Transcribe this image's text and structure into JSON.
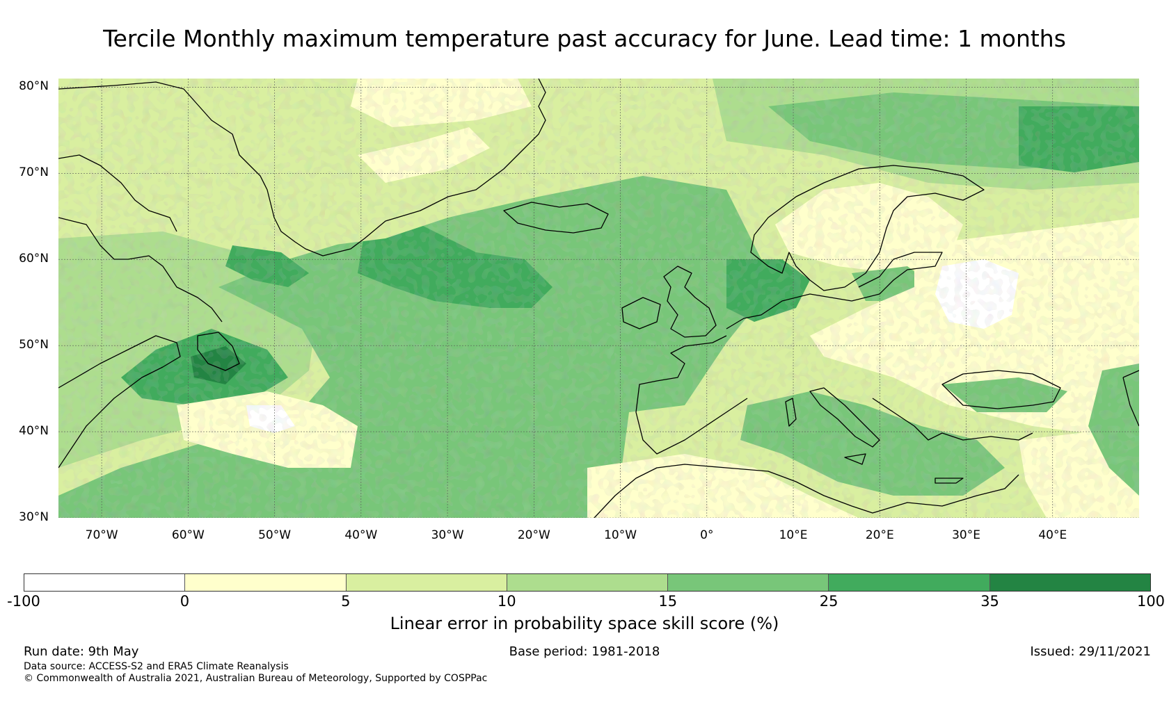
{
  "title": "Tercile Monthly maximum temperature past accuracy for June. Lead time: 1 months",
  "map": {
    "lon_range": [
      -75,
      50
    ],
    "lat_range": [
      30,
      81
    ],
    "lat_ticks": [
      "80°N",
      "70°N",
      "60°N",
      "50°N",
      "40°N",
      "30°N"
    ],
    "lat_values": [
      80,
      70,
      60,
      50,
      40,
      30
    ],
    "lon_ticks": [
      "70°W",
      "60°W",
      "50°W",
      "40°W",
      "30°W",
      "20°W",
      "10°W",
      "0°",
      "10°E",
      "20°E",
      "30°E",
      "40°E"
    ],
    "lon_values": [
      -70,
      -60,
      -50,
      -40,
      -30,
      -20,
      -10,
      0,
      10,
      20,
      30,
      40
    ]
  },
  "colorbar": {
    "colors": [
      "#ffffff",
      "#ffffcc",
      "#d9efa0",
      "#addd8e",
      "#78c679",
      "#41ab5d",
      "#238443"
    ],
    "tick_labels": [
      "-100",
      "0",
      "5",
      "10",
      "15",
      "25",
      "35",
      "100"
    ],
    "label": "Linear error in probability space skill score (%)"
  },
  "footer": {
    "run_date": "Run date: 9th May",
    "base_period": "Base period: 1981-2018",
    "issued": "Issued: 29/11/2021",
    "data_source": "Data source: ACCESS-S2 and ERA5 Climate Reanalysis",
    "copyright": "© Commonwealth of Australia 2021, Australian Bureau of Meteorology, Supported by COSPPac"
  }
}
